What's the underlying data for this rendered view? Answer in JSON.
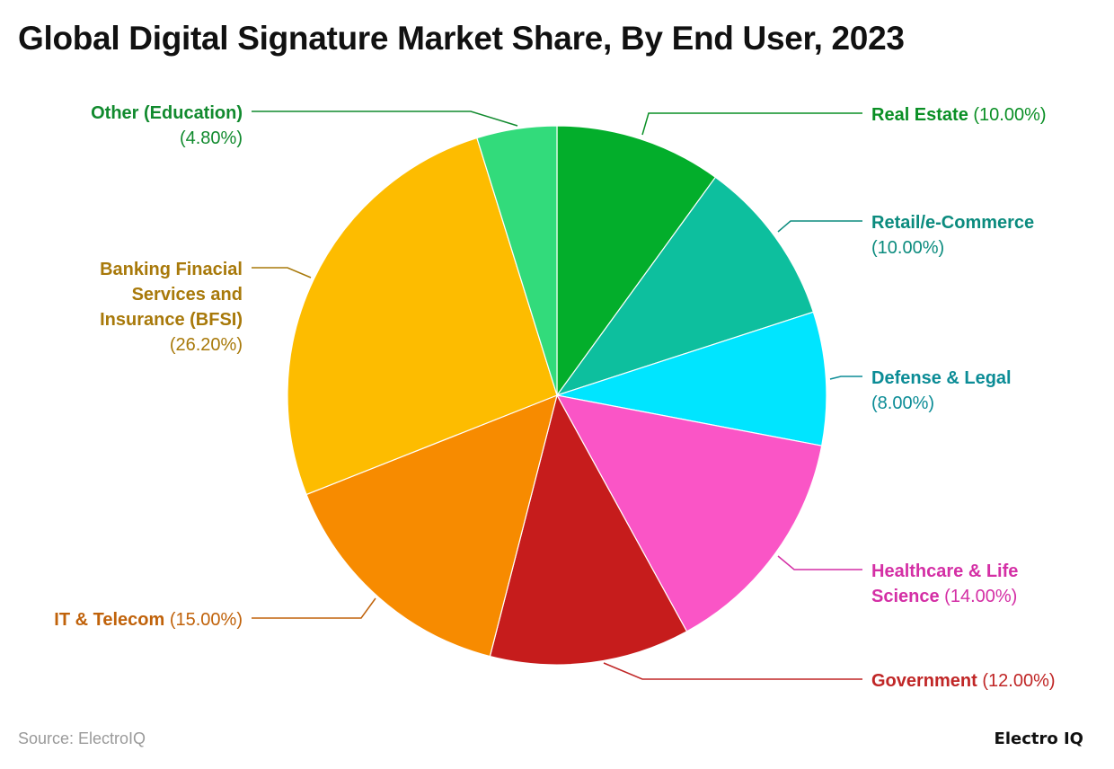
{
  "chart_data": {
    "type": "pie",
    "title": "Global Digital Signature Market Share, By End User, 2023",
    "slices": [
      {
        "name": "Real Estate",
        "value": 10.0,
        "value_label": "(10.00%)",
        "color": "#03ae2b",
        "label_color": "#0a8f25"
      },
      {
        "name": "Retail/e-Commerce",
        "value": 10.0,
        "value_label": "(10.00%)",
        "color": "#0dbf9e",
        "label_color": "#0b8b7e"
      },
      {
        "name": "Defense & Legal",
        "value": 8.0,
        "value_label": "(8.00%)",
        "color": "#00e5ff",
        "label_color": "#0b8c96"
      },
      {
        "name": "Healthcare & Life Science",
        "value": 14.0,
        "value_label": "(14.00%)",
        "color": "#fa55c6",
        "label_color": "#d42fa5"
      },
      {
        "name": "Government",
        "value": 12.0,
        "value_label": "(12.00%)",
        "color": "#c61c1c",
        "label_color": "#c02626"
      },
      {
        "name": "IT & Telecom",
        "value": 15.0,
        "value_label": "(15.00%)",
        "color": "#f78b00",
        "label_color": "#c0620a"
      },
      {
        "name": "Banking Finacial Services and Insurance (BFSI)",
        "value": 26.2,
        "value_label": "(26.20%)",
        "color": "#fdbc00",
        "label_color": "#a8790a"
      },
      {
        "name": "Other (Education)",
        "value": 4.8,
        "value_label": "(4.80%)",
        "color": "#32db7b",
        "label_color": "#118a2e"
      }
    ]
  },
  "footer": {
    "source": "Source: ElectroIQ",
    "brand": "Electro IQ"
  }
}
